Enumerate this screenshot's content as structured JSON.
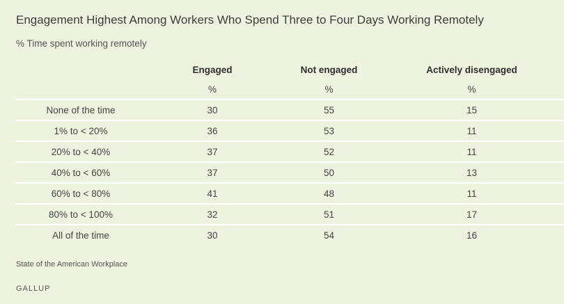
{
  "chart_data": {
    "type": "table",
    "title": "Engagement Highest Among Workers Who Spend Three to Four Days Working Remotely",
    "subtitle": "% Time spent working remotely",
    "columns": [
      "Engaged",
      "Not engaged",
      "Actively disengaged"
    ],
    "units": [
      "%",
      "%",
      "%"
    ],
    "rows": [
      {
        "label": "None of the time",
        "values": [
          "30",
          "55",
          "15"
        ]
      },
      {
        "label": "1% to < 20%",
        "values": [
          "36",
          "53",
          "11"
        ]
      },
      {
        "label": "20% to < 40%",
        "values": [
          "37",
          "52",
          "11"
        ]
      },
      {
        "label": "40% to < 60%",
        "values": [
          "37",
          "50",
          "13"
        ]
      },
      {
        "label": "60% to < 80%",
        "values": [
          "41",
          "48",
          "11"
        ]
      },
      {
        "label": "80% to < 100%",
        "values": [
          "32",
          "51",
          "17"
        ]
      },
      {
        "label": "All of the time",
        "values": [
          "30",
          "54",
          "16"
        ]
      }
    ],
    "source": "State of the American Workplace",
    "brand": "GALLUP"
  },
  "colors": {
    "background": "#eef3df",
    "row_divider": "#ffffff"
  }
}
